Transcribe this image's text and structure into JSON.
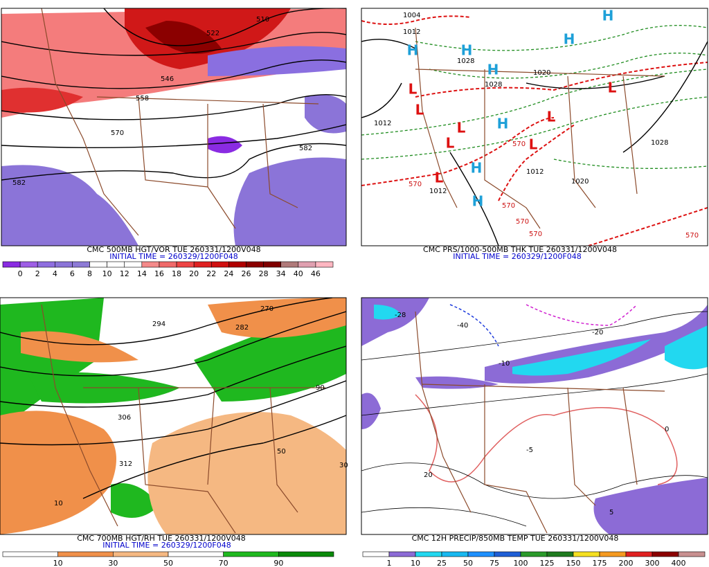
{
  "panels": [
    {
      "title": "CMC 500MB HGT/VOR TUE 260331/1200V048",
      "initial_time": "INITIAL TIME = 260329/1200F048",
      "colorbar": {
        "labels": [
          "0",
          "2",
          "4",
          "6",
          "8",
          "10",
          "12",
          "14",
          "16",
          "18",
          "20",
          "22",
          "24",
          "26",
          "28",
          "34",
          "40",
          "46"
        ],
        "colors": [
          "#8a2be2",
          "#9f5fe6",
          "#8f6ee0",
          "#8b74d8",
          "#8d7ad6",
          "#ffffff",
          "#ffffff",
          "#ffffff",
          "#f48a8a",
          "#f06a6a",
          "#ee4444",
          "#e02020",
          "#d01010",
          "#b00000",
          "#8b0000",
          "#800000",
          "#b07a7a",
          "#e0a0b0",
          "#ffb6c1"
        ]
      },
      "contour_labels": [
        "510",
        "522",
        "546",
        "558",
        "570",
        "582",
        "582"
      ]
    },
    {
      "title": "CMC PRS/1000-500MB THK TUE 260331/1200V048",
      "initial_time": "INITIAL TIME = 260329/1200F048",
      "contour_labels": [
        "1004",
        "1012",
        "1028",
        "1028",
        "1020",
        "1012",
        "1012",
        "1028",
        "1020",
        "1012",
        "570",
        "570",
        "570",
        "570",
        "570",
        "570"
      ],
      "centers": [
        "H",
        "H",
        "H",
        "H",
        "H",
        "H",
        "H",
        "H",
        "L",
        "L",
        "L",
        "L",
        "L",
        "L",
        "L",
        "L"
      ]
    },
    {
      "title": "CMC 700MB HGT/RH TUE 260331/1200V048",
      "initial_time": "INITIAL TIME = 260329/1200F048",
      "colorbar": {
        "labels": [
          "10",
          "30",
          "50",
          "70",
          "90"
        ],
        "colors": [
          "#ffffff",
          "#f0904a",
          "#f5b882",
          "#ffffff",
          "#1fb81f",
          "#0a8a0a"
        ]
      },
      "contour_labels": [
        "270",
        "282",
        "294",
        "306",
        "312",
        "50",
        "90",
        "10",
        "30"
      ]
    },
    {
      "title": "CMC 12H PRECIP/850MB TEMP TUE 260331/1200V048",
      "colorbar": {
        "labels": [
          "1",
          "10",
          "25",
          "50",
          "75",
          "100",
          "125",
          "150",
          "175",
          "200",
          "300",
          "400"
        ],
        "colors": [
          "#ffffff",
          "#8c6bd6",
          "#22d8f0",
          "#18b8f0",
          "#1e90ff",
          "#1f5fd6",
          "#2a9a2a",
          "#1e7a1e",
          "#f5e020",
          "#f59a20",
          "#e02020",
          "#8b0000",
          "#c89090"
        ]
      },
      "contour_labels": [
        "-28",
        "-40",
        "-10",
        "-20",
        "0",
        "20",
        "-5",
        "5"
      ]
    }
  ]
}
